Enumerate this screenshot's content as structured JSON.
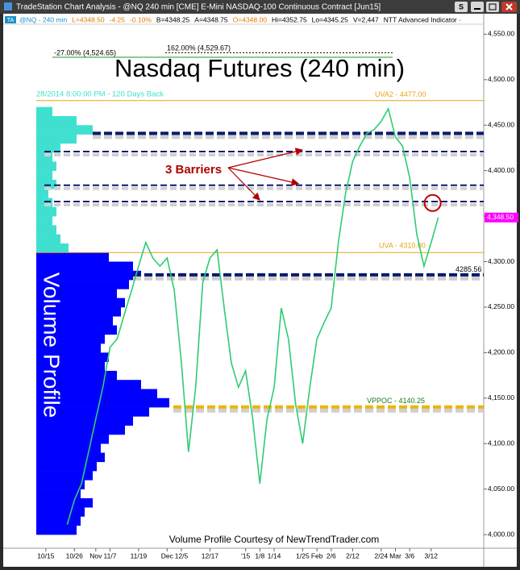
{
  "window": {
    "title": "TradeStation Chart Analysis - @NQ 240 min [CME] E-Mini NASDAQ-100 Continuous Contract [Jun15]",
    "button": "S"
  },
  "quote_bar": {
    "badge": "TA",
    "items": [
      {
        "text": "@NQ - 240 min",
        "color": "#1e90c8"
      },
      {
        "text": "L=4348.50",
        "color": "#e07b00"
      },
      {
        "text": "-4.25",
        "color": "#e07b00"
      },
      {
        "text": "-0.10%",
        "color": "#e07b00"
      },
      {
        "text": "B=4348.25",
        "color": "#000000"
      },
      {
        "text": "A=4348.75",
        "color": "#000000"
      },
      {
        "text": "O=4348.00",
        "color": "#e07b00"
      },
      {
        "text": "Hi=4352.75",
        "color": "#000000"
      },
      {
        "text": "Lo=4345.25",
        "color": "#000000"
      },
      {
        "text": "V=2,447",
        "color": "#000000"
      },
      {
        "text": "NTT Advanced Indicator ·",
        "color": "#000000"
      }
    ]
  },
  "chart_data": {
    "type": "line",
    "title": "Nasdaq Futures (240 min)",
    "color": "#2ecc71",
    "categories": [
      null,
      "10/15",
      null,
      null,
      null,
      "10/26",
      null,
      null,
      "Nov",
      null,
      "11/7",
      null,
      null,
      null,
      "11/19",
      null,
      null,
      null,
      "Dec",
      null,
      "12/5",
      null,
      null,
      null,
      "12/17",
      null,
      null,
      null,
      null,
      "'15",
      null,
      "1/8",
      null,
      "1/14",
      null,
      null,
      null,
      "1/25",
      null,
      "Feb",
      null,
      "2/6",
      null,
      null,
      "2/12",
      null,
      null,
      null,
      "2/24",
      null,
      "Mar",
      null,
      "3/6",
      null,
      null,
      "3/12",
      null
    ],
    "values": [
      null,
      null,
      null,
      null,
      4011,
      4038,
      4056,
      4091,
      4127,
      4162,
      4206,
      4215,
      4242,
      4268,
      4295,
      4321,
      4304,
      4295,
      4304,
      4268,
      4189,
      4091,
      4162,
      4277,
      4304,
      4313,
      4249,
      4189,
      4162,
      4180,
      4127,
      4056,
      4127,
      4162,
      4249,
      4215,
      4144,
      4100,
      4162,
      4215,
      4233,
      4249,
      4321,
      4375,
      4410,
      4427,
      4441,
      4445,
      4454,
      4468,
      4437,
      4427,
      4392,
      4330,
      4295,
      4321,
      4348.5
    ],
    "last_price_label": "4,348.50",
    "last_price_color": "#ff00ff",
    "ylim": [
      3985,
      4561
    ],
    "yticks": [
      {
        "value": 4000,
        "label": "4,000.00"
      },
      {
        "value": 4050,
        "label": "4,050.00"
      },
      {
        "value": 4100,
        "label": "4,100.00"
      },
      {
        "value": 4150,
        "label": "4,150.00"
      },
      {
        "value": 4200,
        "label": "4,200.00"
      },
      {
        "value": 4250,
        "label": "4,250.00"
      },
      {
        "value": 4300,
        "label": "4,300.00"
      },
      {
        "value": 4350,
        "label": "4,350.00"
      },
      {
        "value": 4400,
        "label": "4,400.00"
      },
      {
        "value": 4450,
        "label": "4,450.00"
      },
      {
        "value": 4500,
        "label": "4,500.00"
      },
      {
        "value": 4550,
        "label": "4,550.00"
      }
    ],
    "levels": [
      {
        "value": 4529.67,
        "color": "#000000",
        "style": "dotted",
        "label": "162.00% (4,529.67)",
        "label_color": "#000000"
      },
      {
        "value": 4524.65,
        "color": "#1a9a1a",
        "style": "solid",
        "label": "-27.00% (4,524.65)",
        "label_color": "#000000"
      },
      {
        "value": 4477,
        "color": "#e8a317",
        "style": "solid",
        "label": "UVA2 - 4477.00",
        "label_color": "#e8a317"
      },
      {
        "value": 4441,
        "color": "#0a1a6e",
        "style": "bold-dashed"
      },
      {
        "value": 4421,
        "color": "#0a1a6e",
        "style": "dashed"
      },
      {
        "value": 4384,
        "color": "#0a1a6e",
        "style": "dashed"
      },
      {
        "value": 4366,
        "color": "#0a1a6e",
        "style": "dashed"
      },
      {
        "value": 4310,
        "color": "#e8a317",
        "style": "solid",
        "label": "UVA - 4310.00",
        "label_color": "#e8a317"
      },
      {
        "value": 4285.56,
        "color": "#0a1a6e",
        "style": "bold-dashed",
        "label": "4285.56",
        "label_color": "#000000"
      },
      {
        "value": 4140.25,
        "color": "#f0b400",
        "style": "bold-dashed",
        "label": "VPPOC - 4140.25",
        "label_color": "#1a7a1a"
      }
    ],
    "annotation": "3 Barriers",
    "annotation_color": "#b00000",
    "period_label": "28/2014 8:00:00 PM - 120 Days Back",
    "profile": {
      "label": "Volume Profile",
      "color": "#0000ff",
      "upper_color": "#40e0d0",
      "prices": [
        4000,
        4010,
        4020,
        4030,
        4040,
        4050,
        4060,
        4070,
        4080,
        4090,
        4100,
        4110,
        4120,
        4130,
        4140,
        4150,
        4160,
        4170,
        4180,
        4190,
        4200,
        4210,
        4220,
        4230,
        4240,
        4250,
        4260,
        4270,
        4280,
        4290,
        4300,
        4310,
        4320,
        4330,
        4340,
        4350,
        4360,
        4370,
        4380,
        4390,
        4400,
        4410,
        4420,
        4430,
        4440,
        4450,
        4460
      ],
      "volumes": [
        50,
        55,
        60,
        70,
        55,
        60,
        70,
        75,
        85,
        80,
        90,
        110,
        120,
        140,
        165,
        150,
        130,
        100,
        85,
        90,
        80,
        85,
        100,
        95,
        105,
        110,
        100,
        115,
        130,
        120,
        90,
        40,
        30,
        25,
        20,
        25,
        20,
        15,
        25,
        20,
        25,
        20,
        30,
        50,
        70,
        50,
        20
      ]
    },
    "credit": "Volume Profile Courtesy of NewTrendTrader.com"
  }
}
